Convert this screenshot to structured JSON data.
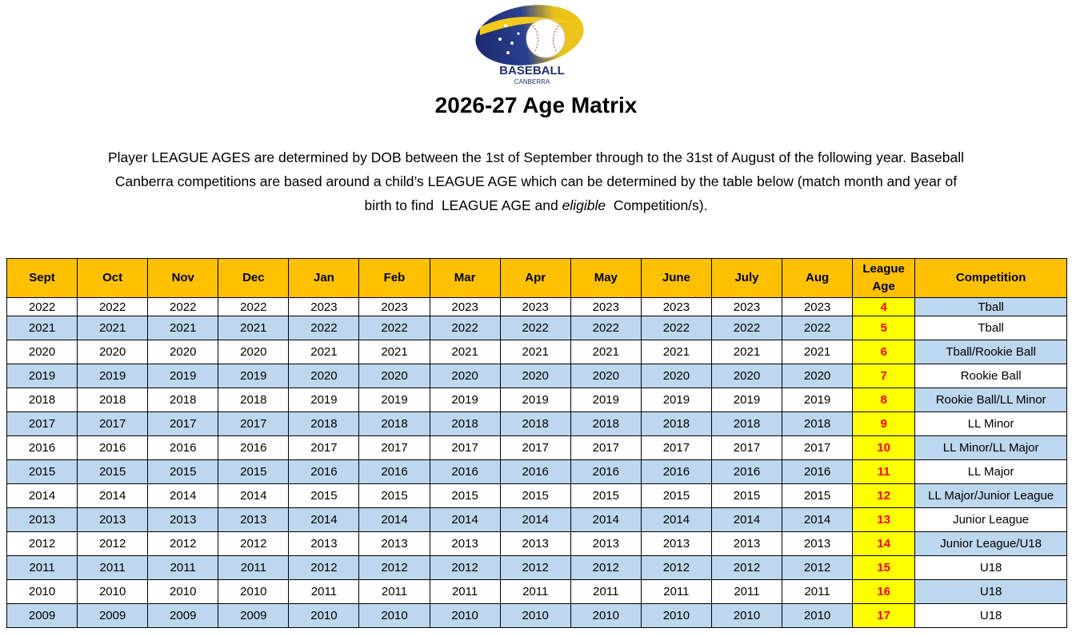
{
  "logo": {
    "name": "BASEBALL",
    "place": "CANBERRA"
  },
  "title": "2026-27 Age Matrix",
  "intro": {
    "lines": [
      "Player LEAGUE AGES are determined by DOB between the 1st of September through to the 31st of August of the following year. Baseball",
      "Canberra competitions are based around a child’s LEAGUE AGE which can be determined by the table below (match month and year of"
    ],
    "before": "birth to find  LEAGUE AGE and ",
    "emphasis": "eligible",
    "after": "  Competition/s)."
  },
  "table": {
    "header": [
      "Sept",
      "Oct",
      "Nov",
      "Dec",
      "Jan",
      "Feb",
      "Mar",
      "Apr",
      "May",
      "June",
      "July",
      "Aug",
      "League Age",
      "Competition"
    ],
    "rows": [
      [
        2022,
        2022,
        2022,
        2022,
        2023,
        2023,
        2023,
        2023,
        2023,
        2023,
        2023,
        2023,
        4,
        "Tball"
      ],
      [
        2021,
        2021,
        2021,
        2021,
        2022,
        2022,
        2022,
        2022,
        2022,
        2022,
        2022,
        2022,
        5,
        "Tball"
      ],
      [
        2020,
        2020,
        2020,
        2020,
        2021,
        2021,
        2021,
        2021,
        2021,
        2021,
        2021,
        2021,
        6,
        "Tball/Rookie Ball"
      ],
      [
        2019,
        2019,
        2019,
        2019,
        2020,
        2020,
        2020,
        2020,
        2020,
        2020,
        2020,
        2020,
        7,
        "Rookie Ball"
      ],
      [
        2018,
        2018,
        2018,
        2018,
        2019,
        2019,
        2019,
        2019,
        2019,
        2019,
        2019,
        2019,
        8,
        "Rookie Ball/LL Minor"
      ],
      [
        2017,
        2017,
        2017,
        2017,
        2018,
        2018,
        2018,
        2018,
        2018,
        2018,
        2018,
        2018,
        9,
        "LL Minor"
      ],
      [
        2016,
        2016,
        2016,
        2016,
        2017,
        2017,
        2017,
        2017,
        2017,
        2017,
        2017,
        2017,
        10,
        "LL Minor/LL Major"
      ],
      [
        2015,
        2015,
        2015,
        2015,
        2016,
        2016,
        2016,
        2016,
        2016,
        2016,
        2016,
        2016,
        11,
        "LL Major"
      ],
      [
        2014,
        2014,
        2014,
        2014,
        2015,
        2015,
        2015,
        2015,
        2015,
        2015,
        2015,
        2015,
        12,
        "LL Major/Junior League"
      ],
      [
        2013,
        2013,
        2013,
        2013,
        2014,
        2014,
        2014,
        2014,
        2014,
        2014,
        2014,
        2014,
        13,
        "Junior League"
      ],
      [
        2012,
        2012,
        2012,
        2012,
        2013,
        2013,
        2013,
        2013,
        2013,
        2013,
        2013,
        2013,
        14,
        "Junior League/U18"
      ],
      [
        2011,
        2011,
        2011,
        2011,
        2012,
        2012,
        2012,
        2012,
        2012,
        2012,
        2012,
        2012,
        15,
        "U18"
      ],
      [
        2010,
        2010,
        2010,
        2010,
        2011,
        2011,
        2011,
        2011,
        2011,
        2011,
        2011,
        2011,
        16,
        "U18"
      ],
      [
        2009,
        2009,
        2009,
        2009,
        2010,
        2010,
        2010,
        2010,
        2010,
        2010,
        2010,
        2010,
        17,
        "U18"
      ]
    ]
  }
}
